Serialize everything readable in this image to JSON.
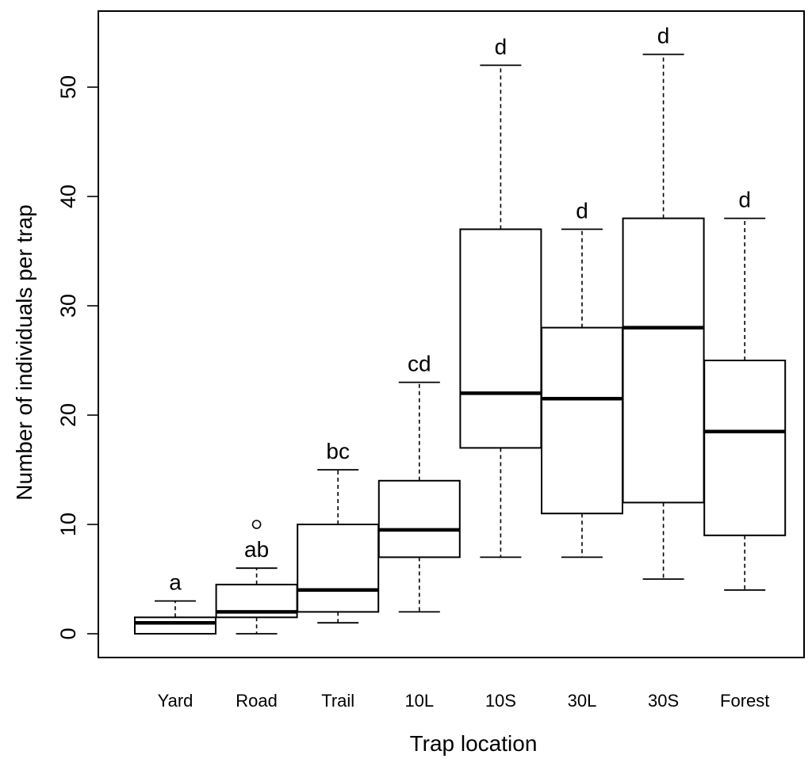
{
  "chart_data": {
    "type": "boxplot",
    "xlabel": "Trap location",
    "ylabel": "Number of individuals  per trap",
    "ylim": [
      -2.2,
      57
    ],
    "yticks": [
      0,
      10,
      20,
      30,
      40,
      50
    ],
    "categories": [
      "Yard",
      "Road",
      "Trail",
      "10L",
      "10S",
      "30L",
      "30S",
      "Forest"
    ],
    "boxes": [
      {
        "category": "Yard",
        "whisker_low": 0,
        "q1": 0,
        "median": 1,
        "q3": 1.5,
        "whisker_high": 3,
        "outliers": [],
        "group_label": "a"
      },
      {
        "category": "Road",
        "whisker_low": 0,
        "q1": 1.5,
        "median": 2,
        "q3": 4.5,
        "whisker_high": 6,
        "outliers": [
          10
        ],
        "group_label": "ab"
      },
      {
        "category": "Trail",
        "whisker_low": 1,
        "q1": 2,
        "median": 4,
        "q3": 10,
        "whisker_high": 15,
        "outliers": [],
        "group_label": "bc"
      },
      {
        "category": "10L",
        "whisker_low": 2,
        "q1": 7,
        "median": 9.5,
        "q3": 14,
        "whisker_high": 23,
        "outliers": [],
        "group_label": "cd"
      },
      {
        "category": "10S",
        "whisker_low": 7,
        "q1": 17,
        "median": 22,
        "q3": 37,
        "whisker_high": 52,
        "outliers": [],
        "group_label": "d"
      },
      {
        "category": "30L",
        "whisker_low": 7,
        "q1": 11,
        "median": 21.5,
        "q3": 28,
        "whisker_high": 37,
        "outliers": [],
        "group_label": "d"
      },
      {
        "category": "30S",
        "whisker_low": 5,
        "q1": 12,
        "median": 28,
        "q3": 38,
        "whisker_high": 53,
        "outliers": [],
        "group_label": "d"
      },
      {
        "category": "Forest",
        "whisker_low": 4,
        "q1": 9,
        "median": 18.5,
        "q3": 25,
        "whisker_high": 38,
        "outliers": [],
        "group_label": "d"
      }
    ]
  }
}
